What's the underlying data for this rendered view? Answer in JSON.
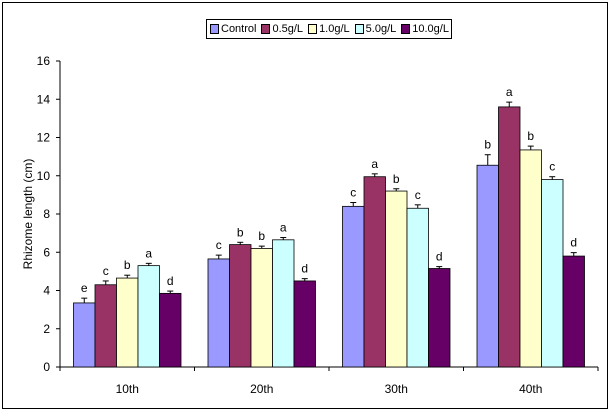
{
  "chart_data": {
    "type": "bar",
    "categories": [
      "10th",
      "20th",
      "30th",
      "40th"
    ],
    "series": [
      {
        "name": "Control",
        "color": "#9999ff",
        "values": [
          3.35,
          5.65,
          8.4,
          10.55
        ],
        "errors": [
          0.25,
          0.2,
          0.2,
          0.55
        ],
        "labels": [
          "e",
          "c",
          "c",
          "b"
        ]
      },
      {
        "name": "0.5g/L",
        "color": "#993366",
        "values": [
          4.3,
          6.4,
          9.95,
          13.6
        ],
        "errors": [
          0.2,
          0.12,
          0.15,
          0.25
        ],
        "labels": [
          "c",
          "b",
          "a",
          "a"
        ]
      },
      {
        "name": "1.0g/L",
        "color": "#ffffcc",
        "values": [
          4.65,
          6.2,
          9.2,
          11.35
        ],
        "errors": [
          0.15,
          0.12,
          0.12,
          0.2
        ],
        "labels": [
          "b",
          "b",
          "b",
          "b"
        ]
      },
      {
        "name": "5.0g/L",
        "color": "#ccffff",
        "values": [
          5.3,
          6.65,
          8.3,
          9.8
        ],
        "errors": [
          0.12,
          0.12,
          0.18,
          0.15
        ],
        "labels": [
          "a",
          "a",
          "c",
          "c"
        ]
      },
      {
        "name": "10.0g/L",
        "color": "#660066",
        "values": [
          3.85,
          4.5,
          5.15,
          5.8
        ],
        "errors": [
          0.12,
          0.12,
          0.1,
          0.18
        ],
        "labels": [
          "d",
          "d",
          "d",
          "d"
        ]
      }
    ],
    "ylabel": "Rhizome length (cm)",
    "xlabel": "",
    "ylim": [
      0,
      16
    ],
    "yticks": [
      0,
      2,
      4,
      6,
      8,
      10,
      12,
      14,
      16
    ],
    "legend_position": "top-center",
    "grid": false
  }
}
